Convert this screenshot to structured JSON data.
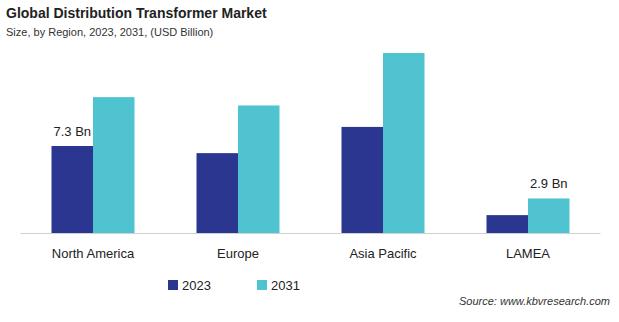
{
  "chart_data": {
    "type": "bar",
    "title": "Global Distribution Transformer Market",
    "subtitle": "Size, by Region, 2023, 2031, (USD Billion)",
    "categories": [
      "North America",
      "Europe",
      "Asia Pacific",
      "LAMEA"
    ],
    "series": [
      {
        "name": "2023",
        "color": "#2b3691",
        "values": [
          7.3,
          6.7,
          8.9,
          1.5
        ]
      },
      {
        "name": "2031",
        "color": "#4fc4d0",
        "values": [
          11.4,
          10.7,
          15.1,
          2.9
        ]
      }
    ],
    "ylim": [
      0,
      16
    ],
    "tick_labels": "x",
    "grid": false,
    "legend": "bottom",
    "annotations": [
      {
        "label": "7.3 Bn",
        "series": "2023",
        "category": "North America"
      },
      {
        "label": "2.9 Bn",
        "series": "2031",
        "category": "LAMEA"
      }
    ],
    "source": "Source: www.kbvresearch.com"
  }
}
